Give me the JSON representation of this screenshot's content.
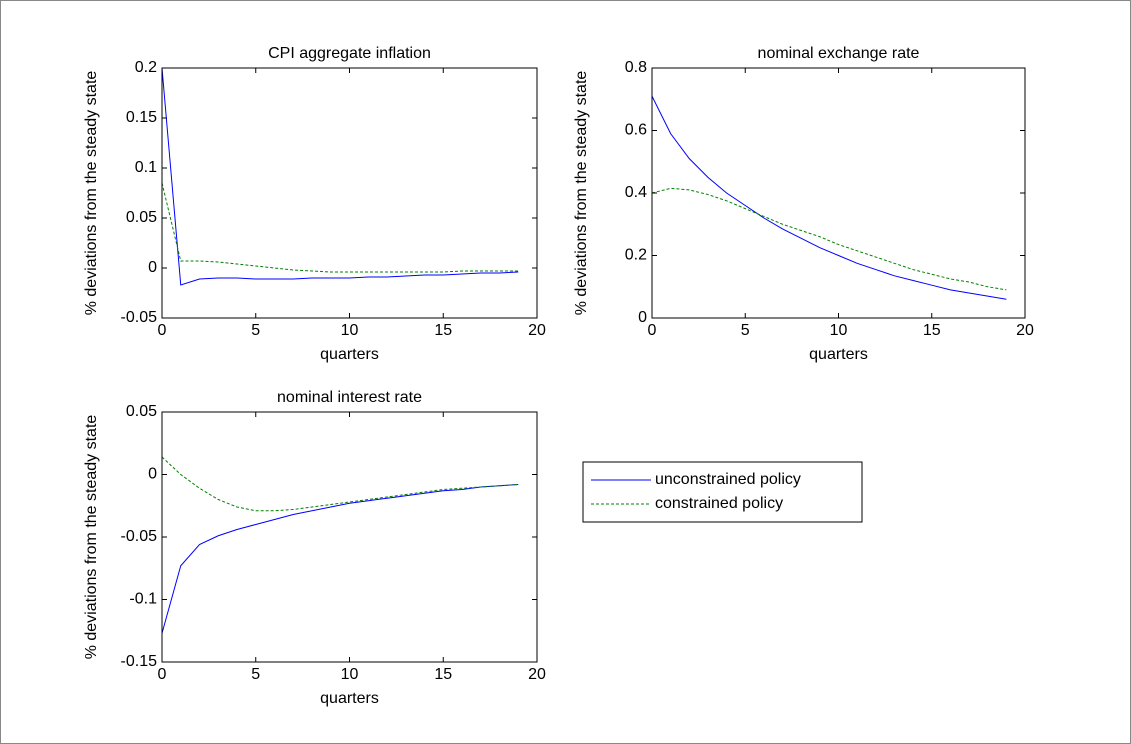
{
  "chart_data": [
    {
      "type": "line",
      "title": "CPI aggregate inflation",
      "xlabel": "quarters",
      "ylabel": "% deviations from the steady state",
      "x": [
        0,
        1,
        2,
        3,
        4,
        5,
        6,
        7,
        8,
        9,
        10,
        11,
        12,
        13,
        14,
        15,
        16,
        17,
        18,
        19
      ],
      "xlim": [
        0,
        20
      ],
      "xticks": [
        0,
        5,
        10,
        15,
        20
      ],
      "ylim": [
        -0.05,
        0.2
      ],
      "yticks": [
        -0.05,
        0,
        0.05,
        0.1,
        0.15,
        0.2
      ],
      "series": [
        {
          "color": "#0000ff",
          "values": [
            0.2,
            -0.017,
            -0.011,
            -0.01,
            -0.01,
            -0.011,
            -0.011,
            -0.011,
            -0.01,
            -0.01,
            -0.01,
            -0.009,
            -0.009,
            -0.008,
            -0.007,
            -0.007,
            -0.006,
            -0.005,
            -0.005,
            -0.004
          ]
        },
        {
          "color": "#008000",
          "dashed": true,
          "values": [
            0.085,
            0.007,
            0.007,
            0.006,
            0.004,
            0.002,
            0,
            -0.002,
            -0.003,
            -0.004,
            -0.004,
            -0.004,
            -0.004,
            -0.004,
            -0.004,
            -0.004,
            -0.003,
            -0.003,
            -0.003,
            -0.003
          ]
        }
      ]
    },
    {
      "type": "line",
      "title": "nominal exchange rate",
      "xlabel": "quarters",
      "ylabel": "% deviations from the steady state",
      "x": [
        0,
        1,
        2,
        3,
        4,
        5,
        6,
        7,
        8,
        9,
        10,
        11,
        12,
        13,
        14,
        15,
        16,
        17,
        18,
        19
      ],
      "xlim": [
        0,
        20
      ],
      "xticks": [
        0,
        5,
        10,
        15,
        20
      ],
      "ylim": [
        0,
        0.8
      ],
      "yticks": [
        0,
        0.2,
        0.4,
        0.6,
        0.8
      ],
      "series": [
        {
          "color": "#0000ff",
          "values": [
            0.71,
            0.59,
            0.51,
            0.45,
            0.4,
            0.36,
            0.32,
            0.285,
            0.255,
            0.225,
            0.2,
            0.175,
            0.155,
            0.135,
            0.12,
            0.105,
            0.09,
            0.08,
            0.07,
            0.06
          ]
        },
        {
          "color": "#008000",
          "dashed": true,
          "values": [
            0.4,
            0.415,
            0.41,
            0.395,
            0.375,
            0.35,
            0.325,
            0.3,
            0.28,
            0.26,
            0.235,
            0.215,
            0.195,
            0.175,
            0.155,
            0.14,
            0.125,
            0.115,
            0.1,
            0.09
          ]
        }
      ]
    },
    {
      "type": "line",
      "title": "nominal interest rate",
      "xlabel": "quarters",
      "ylabel": "% deviations from the steady state",
      "x": [
        0,
        1,
        2,
        3,
        4,
        5,
        6,
        7,
        8,
        9,
        10,
        11,
        12,
        13,
        14,
        15,
        16,
        17,
        18,
        19
      ],
      "xlim": [
        0,
        20
      ],
      "xticks": [
        0,
        5,
        10,
        15,
        20
      ],
      "ylim": [
        -0.15,
        0.05
      ],
      "yticks": [
        -0.15,
        -0.1,
        -0.05,
        0,
        0.05
      ],
      "series": [
        {
          "name": "unconstrained policy",
          "color": "#0000ff",
          "values": [
            -0.127,
            -0.073,
            -0.056,
            -0.049,
            -0.044,
            -0.04,
            -0.036,
            -0.032,
            -0.029,
            -0.026,
            -0.023,
            -0.021,
            -0.019,
            -0.017,
            -0.015,
            -0.013,
            -0.012,
            -0.01,
            -0.009,
            -0.008
          ]
        },
        {
          "name": "constrained policy",
          "color": "#008000",
          "dashed": true,
          "values": [
            0.014,
            0,
            -0.011,
            -0.02,
            -0.026,
            -0.029,
            -0.029,
            -0.028,
            -0.026,
            -0.024,
            -0.022,
            -0.02,
            -0.018,
            -0.016,
            -0.014,
            -0.012,
            -0.011,
            -0.01,
            -0.009,
            -0.008
          ]
        }
      ]
    }
  ]
}
